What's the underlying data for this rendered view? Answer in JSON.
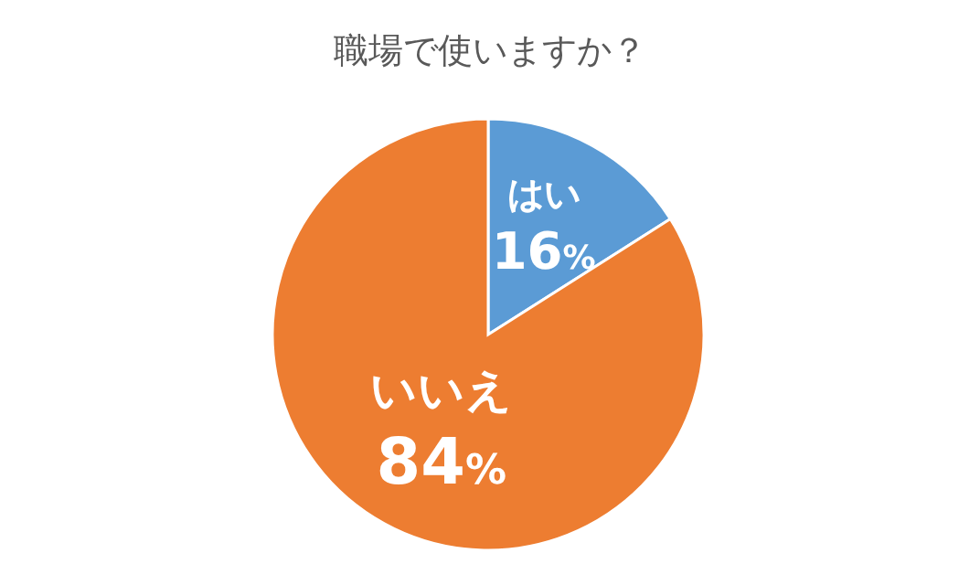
{
  "chart_data": {
    "type": "pie",
    "title": "職場で使いますか？",
    "categories": [
      "はい",
      "いいえ"
    ],
    "values": [
      16,
      84
    ],
    "colors": [
      "#5b9bd5",
      "#ed7d31"
    ],
    "value_labels": [
      "16%",
      "84%"
    ]
  }
}
